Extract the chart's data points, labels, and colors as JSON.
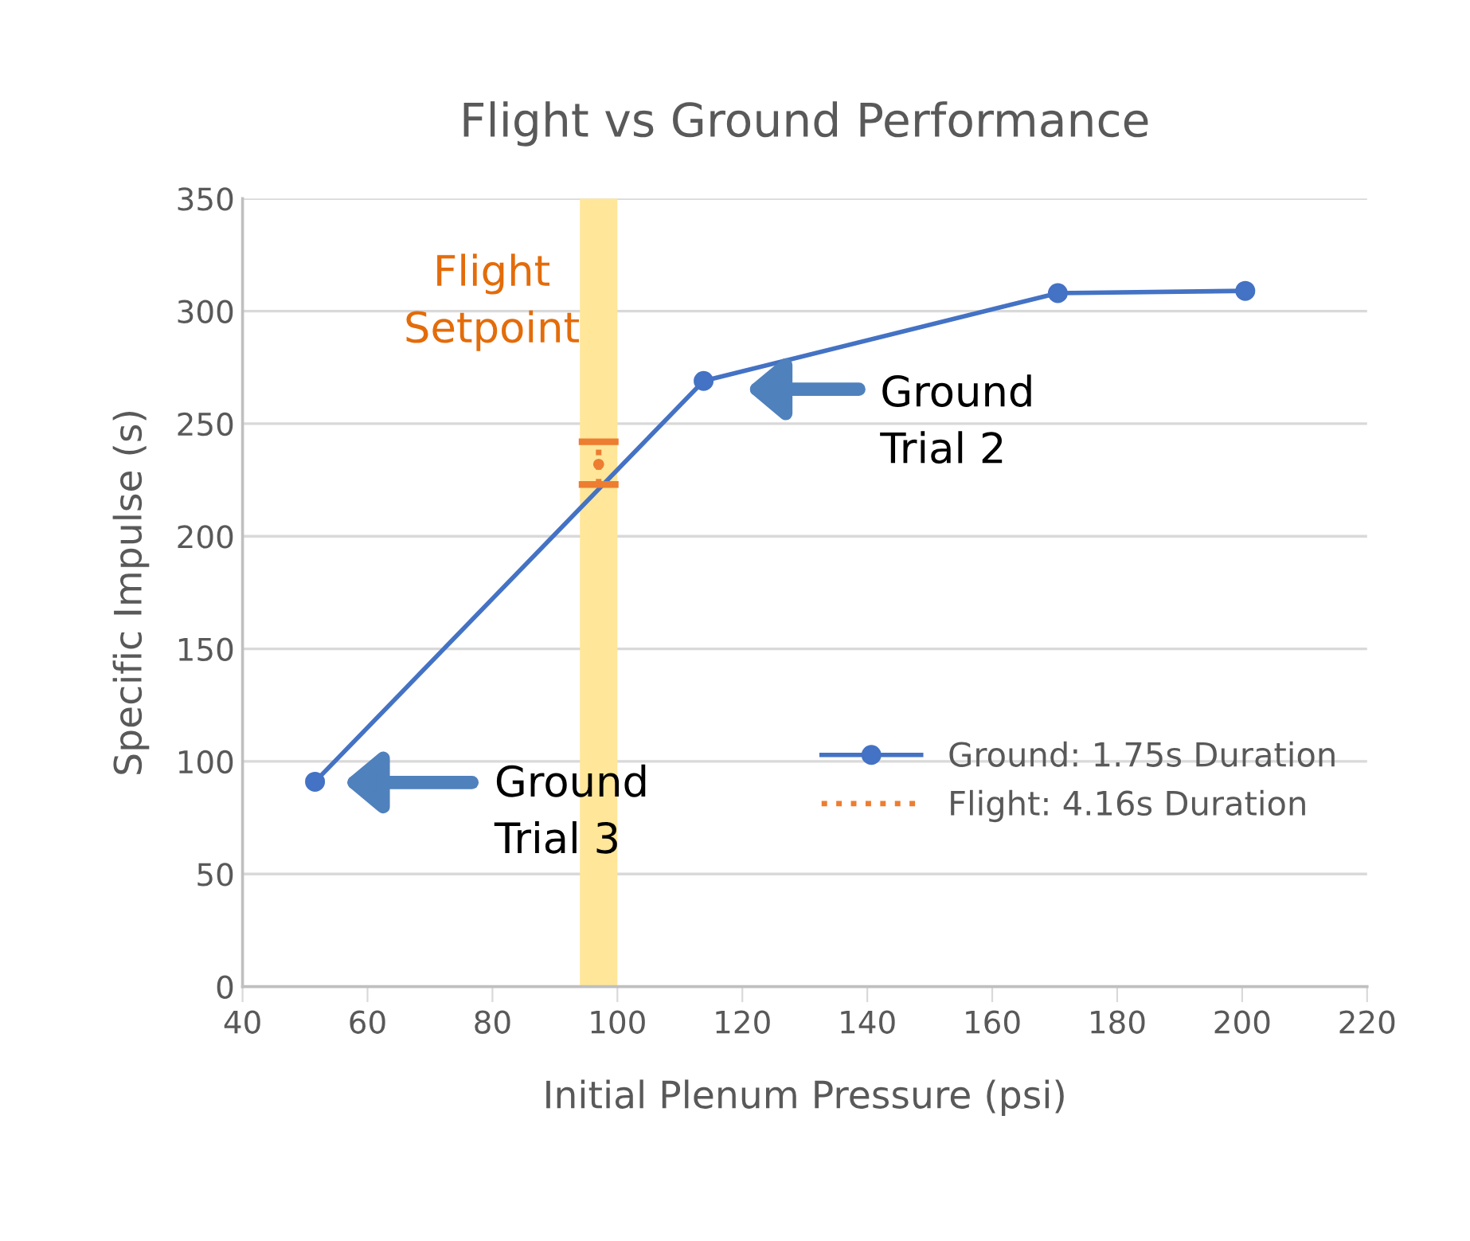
{
  "chart_data": {
    "type": "line",
    "title": "Flight vs Ground Performance",
    "xlabel": "Initial Plenum Pressure (psi)",
    "ylabel": "Specific Impulse (s)",
    "series": [
      {
        "name": "Ground: 1.75s Duration",
        "color": "#4472c4",
        "marker": "circle",
        "line_style": "solid",
        "x": [
          51.6,
          113.8,
          170.5,
          200.5
        ],
        "values": [
          91,
          269,
          308,
          309
        ]
      },
      {
        "name": "Flight: 4.16s Duration",
        "type": "scatter",
        "color": "#ed7d31",
        "marker": "circle",
        "line_style": "dotted",
        "x": [
          97
        ],
        "values": [
          232
        ],
        "errors": [
          [
            223,
            242
          ]
        ]
      }
    ],
    "bands": [
      {
        "axis": "x",
        "from": 94,
        "to": 100,
        "label": "Flight\nSetpoint",
        "color": "#ffe699"
      }
    ],
    "annotations": [
      "Ground\nTrial 2",
      "Ground\nTrial 3"
    ],
    "xlim": [
      40,
      220
    ],
    "xticks": [
      40,
      60,
      80,
      100,
      120,
      140,
      160,
      180,
      200,
      220
    ],
    "ylim": [
      0,
      350
    ],
    "yticks": [
      0,
      50,
      100,
      150,
      200,
      250,
      300,
      350
    ],
    "grid": "y",
    "legend": "right"
  }
}
